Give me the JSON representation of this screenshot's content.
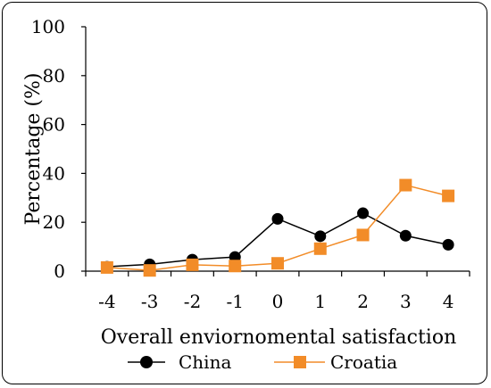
{
  "chart_data": {
    "type": "line",
    "x": [
      -4,
      -3,
      -2,
      -1,
      0,
      1,
      2,
      3,
      4
    ],
    "series": [
      {
        "name": "China",
        "values": [
          1.8,
          2.8,
          4.7,
          5.8,
          21.4,
          14.3,
          23.7,
          14.5,
          10.8
        ],
        "color": "#000000",
        "marker": "circle"
      },
      {
        "name": "Croatia",
        "values": [
          1.5,
          0.3,
          2.6,
          2.1,
          3.2,
          9.2,
          14.8,
          35.2,
          30.8
        ],
        "color": "#f28c28",
        "marker": "square"
      }
    ],
    "xlabel": "Overall enviornomental satisfaction",
    "ylabel": "Percentage (%)",
    "ylim": [
      0,
      100
    ],
    "yticks": [
      0,
      20,
      40,
      60,
      80,
      100
    ],
    "grid": false,
    "legend_position": "bottom"
  }
}
